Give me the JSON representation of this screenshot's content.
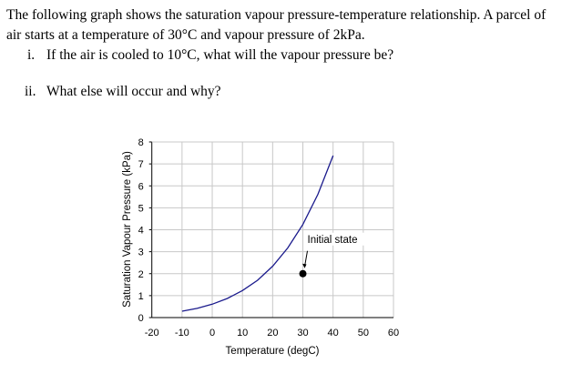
{
  "question": {
    "line1": "The following graph shows the saturation vapour pressure-temperature relationship.  A parcel of",
    "line2": "air starts at a temperature of 30°C and vapour pressure of 2kPa.",
    "part_i_num": "i.",
    "part_i": "If the air is cooled to 10°C, what will the vapour pressure be?",
    "part_ii_num": "ii.",
    "part_ii": "What else will occur and why?"
  },
  "chart_data": {
    "type": "line",
    "title": "",
    "xlabel": "Temperature (degC)",
    "ylabel": "Saturation Vapour Pressure (kPa)",
    "xlim": [
      -20,
      60
    ],
    "ylim": [
      0,
      8
    ],
    "xticks": [
      "-20",
      "-10",
      "0",
      "10",
      "20",
      "30",
      "40",
      "50",
      "60"
    ],
    "yticks": [
      "0",
      "1",
      "2",
      "3",
      "4",
      "5",
      "6",
      "7",
      "8"
    ],
    "grid": true,
    "series": [
      {
        "name": "Saturation vapour pressure",
        "color": "#1a1a8c",
        "x": [
          -10,
          -5,
          0,
          5,
          10,
          15,
          20,
          25,
          30,
          35,
          40
        ],
        "y": [
          0.29,
          0.42,
          0.61,
          0.87,
          1.23,
          1.7,
          2.34,
          3.17,
          4.24,
          5.62,
          7.38
        ]
      }
    ],
    "points": [
      {
        "name": "Initial state",
        "x": 30,
        "y": 2,
        "color": "#000000"
      }
    ],
    "annotations": [
      {
        "text": "Initial state",
        "x": 30,
        "y": 2
      }
    ]
  }
}
